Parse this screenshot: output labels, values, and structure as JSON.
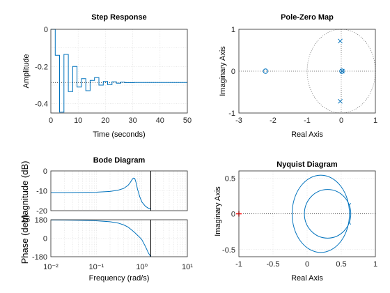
{
  "chart_data": [
    {
      "type": "line",
      "title": "Step Response",
      "xlabel": "Time (seconds)",
      "ylabel": "Amplitude",
      "xlim": [
        0,
        50
      ],
      "ylim": [
        -0.45,
        0
      ],
      "xticks": [
        "0",
        "10",
        "20",
        "30",
        "40",
        "50"
      ],
      "yticks": [
        "0",
        "-0.2",
        "-0.4"
      ],
      "grid": true,
      "steady_state": -0.286,
      "series": [
        {
          "x": [
            0,
            1.6,
            1.6,
            3.2,
            3.2,
            4.8,
            4.8,
            6.4,
            6.4,
            8.0,
            8.0,
            9.6,
            9.6,
            11.2,
            11.2,
            12.8,
            12.8,
            14.4,
            14.4,
            16.0,
            16.0,
            17.6,
            17.6,
            19.2,
            19.2,
            20.8,
            20.8,
            22.4,
            22.4,
            24.0,
            24.0,
            25.6,
            25.6,
            27.2,
            27.2,
            30.4,
            30.4,
            50
          ],
          "y": [
            0,
            0,
            -0.14,
            -0.14,
            -0.445,
            -0.445,
            -0.135,
            -0.135,
            -0.335,
            -0.335,
            -0.2,
            -0.2,
            -0.31,
            -0.31,
            -0.265,
            -0.265,
            -0.33,
            -0.33,
            -0.275,
            -0.275,
            -0.26,
            -0.26,
            -0.3,
            -0.3,
            -0.28,
            -0.28,
            -0.297,
            -0.297,
            -0.282,
            -0.282,
            -0.29,
            -0.29,
            -0.284,
            -0.284,
            -0.287,
            -0.287,
            -0.286,
            -0.286
          ]
        }
      ]
    },
    {
      "type": "scatter",
      "title": "Pole-Zero Map",
      "xlabel": "Real Axis",
      "ylabel": "Imaginary Axis",
      "xlim": [
        -3,
        1
      ],
      "ylim": [
        -1,
        1
      ],
      "xticks": [
        "-3",
        "-2",
        "-1",
        "0",
        "1"
      ],
      "yticks": [
        "1",
        "0",
        "-1"
      ],
      "grid": true,
      "unit_circle": true,
      "zeros": [
        [
          -2.22,
          0
        ],
        [
          0.02,
          0
        ]
      ],
      "poles": [
        [
          -0.03,
          0.72
        ],
        [
          -0.03,
          -0.72
        ],
        [
          0.03,
          0
        ]
      ]
    },
    {
      "type": "line",
      "title": "Bode Diagram",
      "xlabel": "Frequency  (rad/s)",
      "ylabel_top": "Magnitude (dB)",
      "ylabel_bottom": "Phase (deg)",
      "xscale": "log",
      "xlim": [
        0.01,
        10
      ],
      "xticks": [
        "10⁻²",
        "10⁻¹",
        "10⁰",
        "10¹"
      ],
      "mag_ylim": [
        -20,
        0
      ],
      "mag_yticks": [
        "0",
        "-10",
        "-20"
      ],
      "phase_ylim": [
        -180,
        180
      ],
      "phase_yticks": [
        "180",
        "0",
        "-180"
      ],
      "nyquist_frequency": 1.57,
      "grid": true,
      "magnitude": {
        "x": [
          0.01,
          0.02,
          0.05,
          0.1,
          0.2,
          0.3,
          0.4,
          0.5,
          0.55,
          0.6,
          0.65,
          0.7,
          0.75,
          0.8,
          0.9,
          1.0,
          1.2,
          1.4,
          1.57
        ],
        "y": [
          -10.9,
          -10.9,
          -10.8,
          -10.7,
          -10.3,
          -9.7,
          -8.8,
          -7.2,
          -6.0,
          -4.6,
          -3.6,
          -3.8,
          -6.0,
          -9.0,
          -13.0,
          -15.6,
          -17.8,
          -18.8,
          -19.0
        ]
      },
      "phase": {
        "x": [
          0.01,
          0.02,
          0.05,
          0.1,
          0.2,
          0.3,
          0.4,
          0.5,
          0.6,
          0.7,
          0.8,
          0.9,
          1.0,
          1.2,
          1.4,
          1.57
        ],
        "y": [
          178,
          177,
          174,
          170,
          160,
          148,
          130,
          108,
          80,
          55,
          30,
          8,
          -15,
          -80,
          -145,
          -180
        ]
      }
    },
    {
      "type": "line",
      "title": "Nyquist Diagram",
      "xlabel": "Real Axis",
      "ylabel": "Imaginary Axis",
      "xlim": [
        -1,
        1
      ],
      "ylim": [
        -0.6,
        0.6
      ],
      "xticks": [
        "-1",
        "-0.5",
        "0",
        "0.5",
        "1"
      ],
      "yticks": [
        "0.5",
        "0",
        "-0.5"
      ],
      "grid": true,
      "critical_point": [
        -1,
        0
      ],
      "critical_point_color": "#ff0000",
      "outer_loop": {
        "center": [
          0.2,
          0
        ],
        "rx": 0.42,
        "ry": 0.54
      },
      "inner_loop": {
        "center": [
          0.3,
          0
        ],
        "rx": 0.34,
        "ry": 0.34
      }
    }
  ],
  "colors": {
    "line": "#0072bd",
    "critical": "#ff0000"
  }
}
